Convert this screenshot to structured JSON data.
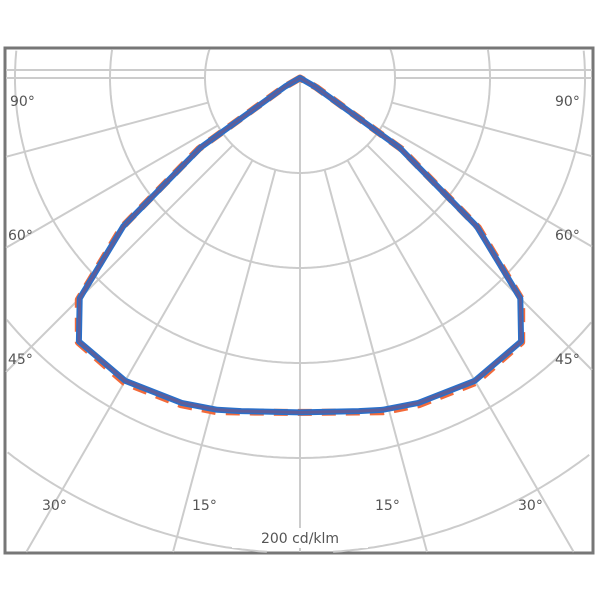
{
  "chart_data": {
    "type": "polar",
    "title": "",
    "unit_label": "200 cd/klm",
    "angle_labels": {
      "left": [
        "90°",
        "60°",
        "45°",
        "30°",
        "15°"
      ],
      "right": [
        "90°",
        "60°",
        "45°",
        "30°",
        "15°"
      ]
    },
    "grid": true,
    "series": [
      {
        "color": "#f26a3a",
        "angles": [
          0,
          10,
          14,
          20,
          30,
          40,
          45,
          50,
          55,
          60
        ],
        "values": [
          352,
          357,
          362,
          366,
          370,
          363,
          330,
          245,
          130,
          20
        ]
      },
      {
        "color": "#2a6fc9",
        "angles": [
          0,
          10,
          14,
          20,
          30,
          40,
          45,
          50,
          55,
          60
        ],
        "values": [
          352,
          356,
          360,
          364,
          368,
          362,
          328,
          243,
          128,
          18
        ]
      }
    ],
    "overlap_color": "#6a5a8e"
  }
}
